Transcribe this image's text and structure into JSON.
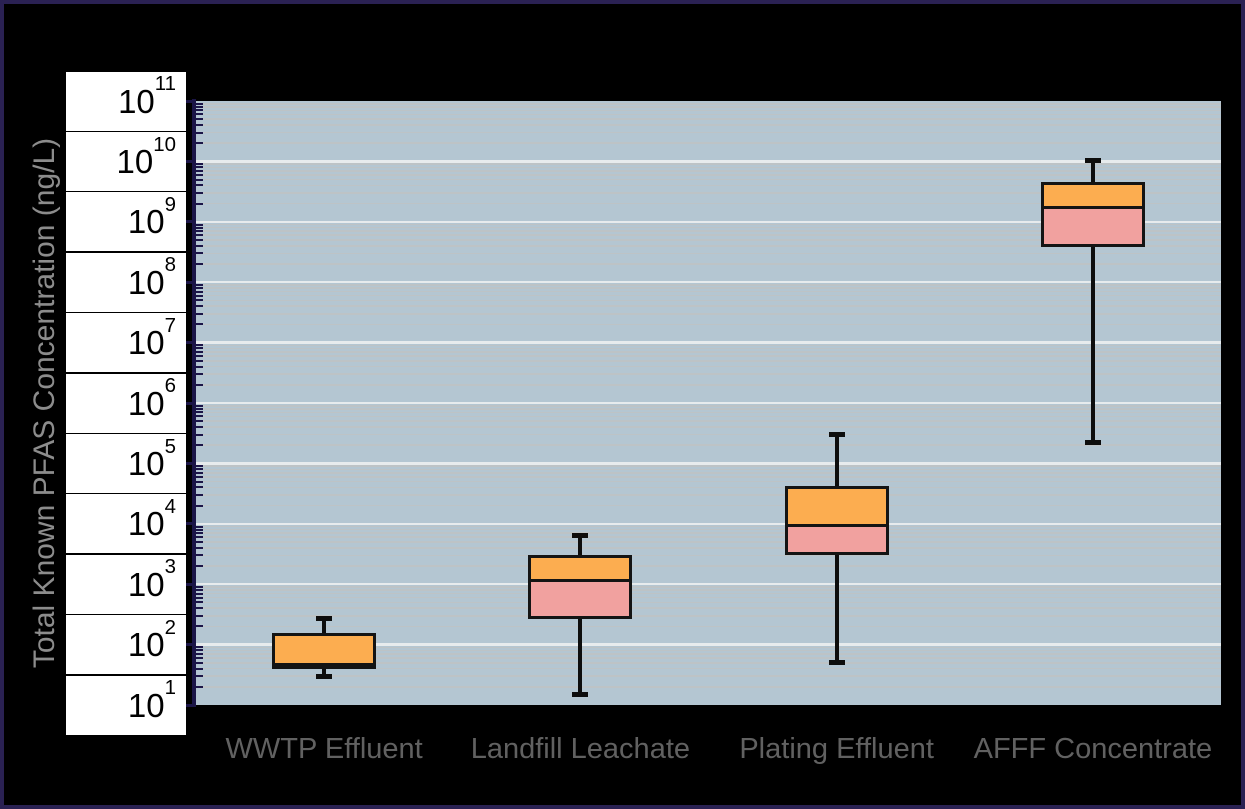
{
  "figure": {
    "background": "#000000",
    "outer_border_color": "#2a2153"
  },
  "chart_data": {
    "type": "boxplot",
    "title": "",
    "xlabel": "",
    "ylabel": "Total Known PFAS Concentration (ng/L)",
    "units": "ng/L",
    "y_scale": "log10",
    "ylim": [
      10,
      100000000000
    ],
    "y_tick_exponents": [
      11,
      10,
      9,
      8,
      7,
      6,
      5,
      4,
      3,
      2,
      1
    ],
    "y_tick_base": "10",
    "grid": "horizontal major (white) + log minor (gray) lines on",
    "legend": "none",
    "categories": [
      "WWTP Effluent",
      "Landfill Leachate",
      "Plating Effluent",
      "AFFF Concentrate"
    ],
    "series": [
      {
        "name": "WWTP Effluent",
        "min": 30,
        "q1": 40,
        "median": 50,
        "q3": 155,
        "max": 270
      },
      {
        "name": "Landfill Leachate",
        "min": 15,
        "q1": 270,
        "median": 1200,
        "q3": 3000,
        "max": 6500
      },
      {
        "name": "Plating Effluent",
        "min": 50,
        "q1": 3000,
        "median": 10000,
        "q3": 42000,
        "max": 300000
      },
      {
        "name": "AFFF Concentrate",
        "min": 220000,
        "q1": 380000000,
        "median": 1800000000,
        "q3": 4500000000,
        "max": 10500000000
      }
    ]
  },
  "colors": {
    "plot_background": "#b4c6d2",
    "grid_minor": "#bdc3c6",
    "grid_major": "#e7ebed",
    "axis": "#1b1547",
    "tick_label_bg": "#ffffff",
    "tick_label_text": "#000000",
    "category_label_text": "#616161",
    "y_title_text": "#8c8c8c",
    "box_upper_fill": "#fcad50",
    "box_lower_fill": "#f1a19f",
    "box_border": "#141414",
    "whisker": "#0d0d0d"
  }
}
